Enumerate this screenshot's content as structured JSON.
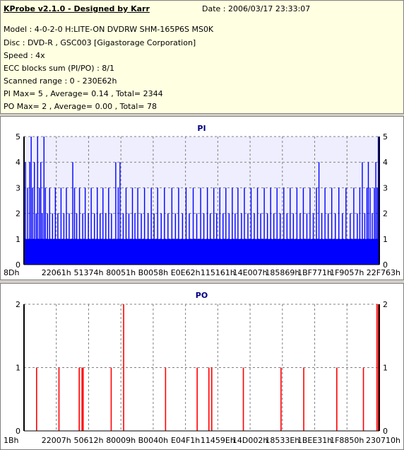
{
  "header": {
    "title": "KProbe v2.1.0 - Designed by Karr",
    "date": "Date : 2006/03/17 23:33:07",
    "model": "Model : 4-0-2-0 H:LITE-ON DVDRW SHM-165P6S MS0K",
    "disc": "Disc : DVD-R , GSC003 [Gigastorage Corporation]",
    "speed": "Speed : 4x",
    "ecc": "ECC blocks sum (PI/PO) : 8/1",
    "range": "Scanned range : 0 - 230E62h",
    "pi_stats": "PI Max= 5 , Average= 0.14 , Total= 2344",
    "po_stats": "PO Max= 2 , Average= 0.00 , Total= 78"
  },
  "colors": {
    "pi_bar": "#0000ff",
    "po_bar": "#ff0000",
    "plot_bg_pi": "#eeeeff",
    "info_bg": "#ffffe1"
  },
  "chart_data": [
    {
      "type": "bar",
      "title": "PI",
      "ylim": [
        0,
        5
      ],
      "yticks": [
        "0",
        "1",
        "2",
        "3",
        "4",
        "5"
      ],
      "xticks": [
        "8Dh",
        "22061h",
        "51374h",
        "80051h",
        "B0058h",
        "E0E62h",
        "115161h",
        "14E007h",
        "185869h",
        "1BF771h",
        "1F9057h",
        "22F763h"
      ],
      "x_range_hex": [
        "0",
        "230E62h"
      ],
      "grid": true,
      "baseline_level": 1,
      "spikes": [
        {
          "x": 0.004,
          "v": 4
        },
        {
          "x": 0.01,
          "v": 3
        },
        {
          "x": 0.016,
          "v": 4
        },
        {
          "x": 0.02,
          "v": 5
        },
        {
          "x": 0.024,
          "v": 3
        },
        {
          "x": 0.029,
          "v": 4
        },
        {
          "x": 0.034,
          "v": 2
        },
        {
          "x": 0.038,
          "v": 5
        },
        {
          "x": 0.043,
          "v": 3
        },
        {
          "x": 0.047,
          "v": 4
        },
        {
          "x": 0.051,
          "v": 2
        },
        {
          "x": 0.056,
          "v": 5
        },
        {
          "x": 0.06,
          "v": 3
        },
        {
          "x": 0.066,
          "v": 2
        },
        {
          "x": 0.072,
          "v": 3
        },
        {
          "x": 0.08,
          "v": 2
        },
        {
          "x": 0.088,
          "v": 3
        },
        {
          "x": 0.095,
          "v": 2
        },
        {
          "x": 0.104,
          "v": 3
        },
        {
          "x": 0.112,
          "v": 2
        },
        {
          "x": 0.119,
          "v": 3
        },
        {
          "x": 0.127,
          "v": 2
        },
        {
          "x": 0.137,
          "v": 4
        },
        {
          "x": 0.142,
          "v": 3
        },
        {
          "x": 0.148,
          "v": 2
        },
        {
          "x": 0.156,
          "v": 3
        },
        {
          "x": 0.165,
          "v": 2
        },
        {
          "x": 0.172,
          "v": 3
        },
        {
          "x": 0.181,
          "v": 2
        },
        {
          "x": 0.189,
          "v": 3
        },
        {
          "x": 0.198,
          "v": 2
        },
        {
          "x": 0.206,
          "v": 3
        },
        {
          "x": 0.214,
          "v": 2
        },
        {
          "x": 0.222,
          "v": 3
        },
        {
          "x": 0.23,
          "v": 2
        },
        {
          "x": 0.238,
          "v": 3
        },
        {
          "x": 0.246,
          "v": 2
        },
        {
          "x": 0.258,
          "v": 4
        },
        {
          "x": 0.265,
          "v": 3
        },
        {
          "x": 0.27,
          "v": 4
        },
        {
          "x": 0.279,
          "v": 2
        },
        {
          "x": 0.287,
          "v": 3
        },
        {
          "x": 0.295,
          "v": 2
        },
        {
          "x": 0.305,
          "v": 3
        },
        {
          "x": 0.312,
          "v": 2
        },
        {
          "x": 0.32,
          "v": 3
        },
        {
          "x": 0.33,
          "v": 2
        },
        {
          "x": 0.339,
          "v": 3
        },
        {
          "x": 0.349,
          "v": 2
        },
        {
          "x": 0.358,
          "v": 3
        },
        {
          "x": 0.366,
          "v": 2
        },
        {
          "x": 0.376,
          "v": 3
        },
        {
          "x": 0.386,
          "v": 2
        },
        {
          "x": 0.395,
          "v": 3
        },
        {
          "x": 0.405,
          "v": 2
        },
        {
          "x": 0.416,
          "v": 3
        },
        {
          "x": 0.426,
          "v": 2
        },
        {
          "x": 0.435,
          "v": 3
        },
        {
          "x": 0.446,
          "v": 2
        },
        {
          "x": 0.456,
          "v": 3
        },
        {
          "x": 0.465,
          "v": 2
        },
        {
          "x": 0.476,
          "v": 3
        },
        {
          "x": 0.486,
          "v": 2
        },
        {
          "x": 0.497,
          "v": 3
        },
        {
          "x": 0.506,
          "v": 2
        },
        {
          "x": 0.516,
          "v": 3
        },
        {
          "x": 0.524,
          "v": 2
        },
        {
          "x": 0.534,
          "v": 3
        },
        {
          "x": 0.542,
          "v": 2
        },
        {
          "x": 0.551,
          "v": 3
        },
        {
          "x": 0.56,
          "v": 2
        },
        {
          "x": 0.568,
          "v": 3
        },
        {
          "x": 0.577,
          "v": 2
        },
        {
          "x": 0.586,
          "v": 3
        },
        {
          "x": 0.594,
          "v": 2
        },
        {
          "x": 0.602,
          "v": 3
        },
        {
          "x": 0.612,
          "v": 2
        },
        {
          "x": 0.62,
          "v": 3
        },
        {
          "x": 0.63,
          "v": 2
        },
        {
          "x": 0.639,
          "v": 3
        },
        {
          "x": 0.648,
          "v": 2
        },
        {
          "x": 0.657,
          "v": 3
        },
        {
          "x": 0.666,
          "v": 2
        },
        {
          "x": 0.676,
          "v": 3
        },
        {
          "x": 0.685,
          "v": 2
        },
        {
          "x": 0.694,
          "v": 3
        },
        {
          "x": 0.703,
          "v": 2
        },
        {
          "x": 0.712,
          "v": 3
        },
        {
          "x": 0.721,
          "v": 2
        },
        {
          "x": 0.731,
          "v": 3
        },
        {
          "x": 0.74,
          "v": 2
        },
        {
          "x": 0.749,
          "v": 3
        },
        {
          "x": 0.758,
          "v": 2
        },
        {
          "x": 0.768,
          "v": 3
        },
        {
          "x": 0.777,
          "v": 2
        },
        {
          "x": 0.786,
          "v": 3
        },
        {
          "x": 0.796,
          "v": 2
        },
        {
          "x": 0.805,
          "v": 3
        },
        {
          "x": 0.814,
          "v": 2
        },
        {
          "x": 0.823,
          "v": 3
        },
        {
          "x": 0.83,
          "v": 4
        },
        {
          "x": 0.838,
          "v": 2
        },
        {
          "x": 0.847,
          "v": 3
        },
        {
          "x": 0.856,
          "v": 2
        },
        {
          "x": 0.866,
          "v": 3
        },
        {
          "x": 0.876,
          "v": 2
        },
        {
          "x": 0.886,
          "v": 3
        },
        {
          "x": 0.896,
          "v": 2
        },
        {
          "x": 0.906,
          "v": 3
        },
        {
          "x": 0.918,
          "v": 2
        },
        {
          "x": 0.928,
          "v": 3
        },
        {
          "x": 0.938,
          "v": 2
        },
        {
          "x": 0.945,
          "v": 3
        },
        {
          "x": 0.952,
          "v": 4
        },
        {
          "x": 0.959,
          "v": 2
        },
        {
          "x": 0.965,
          "v": 3
        },
        {
          "x": 0.969,
          "v": 4
        },
        {
          "x": 0.974,
          "v": 3
        },
        {
          "x": 0.98,
          "v": 2
        },
        {
          "x": 0.986,
          "v": 3
        },
        {
          "x": 0.99,
          "v": 4
        },
        {
          "x": 0.994,
          "v": 3
        },
        {
          "x": 0.997,
          "v": 5
        }
      ]
    },
    {
      "type": "bar",
      "title": "PO",
      "ylim": [
        0,
        2
      ],
      "yticks": [
        "0",
        "1",
        "2"
      ],
      "xticks": [
        "1Bh",
        "22007h",
        "50612h",
        "80009h",
        "B0040h",
        "E04F1h",
        "11459Eh",
        "14D002h",
        "18533Eh",
        "1BEE31h",
        "1F8850h",
        "230710h"
      ],
      "x_range_hex": [
        "0",
        "230E62h"
      ],
      "grid": true,
      "spikes": [
        {
          "x": 0.035,
          "v": 1
        },
        {
          "x": 0.098,
          "v": 1
        },
        {
          "x": 0.155,
          "v": 1
        },
        {
          "x": 0.163,
          "v": 1
        },
        {
          "x": 0.166,
          "v": 1
        },
        {
          "x": 0.245,
          "v": 1
        },
        {
          "x": 0.28,
          "v": 2
        },
        {
          "x": 0.398,
          "v": 1
        },
        {
          "x": 0.487,
          "v": 1
        },
        {
          "x": 0.52,
          "v": 1
        },
        {
          "x": 0.528,
          "v": 1
        },
        {
          "x": 0.617,
          "v": 1
        },
        {
          "x": 0.723,
          "v": 1
        },
        {
          "x": 0.787,
          "v": 1
        },
        {
          "x": 0.88,
          "v": 1
        },
        {
          "x": 0.955,
          "v": 1
        },
        {
          "x": 0.993,
          "v": 2
        },
        {
          "x": 0.997,
          "v": 2
        }
      ]
    }
  ]
}
